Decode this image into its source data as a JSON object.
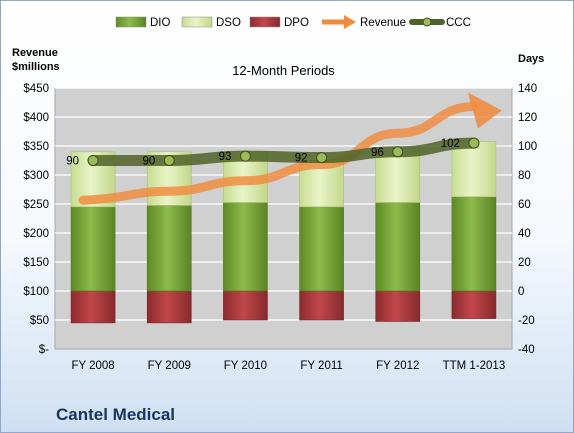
{
  "chart_data": {
    "type": "bar",
    "title": "12-Month Periods",
    "company": "Cantel Medical",
    "y_left_label_line1": "Revenue",
    "y_left_label_line2": "$millions",
    "y_right_label": "Days",
    "categories": [
      "FY 2008",
      "FY 2009",
      "FY 2010",
      "FY 2011",
      "FY 2012",
      "TTM 1-2013"
    ],
    "left_axis": {
      "ylim": [
        0,
        450
      ],
      "ticks": [
        0,
        50,
        100,
        150,
        200,
        250,
        300,
        350,
        400,
        450
      ],
      "tick_labels": [
        "$-",
        "$50",
        "$100",
        "$150",
        "$200",
        "$250",
        "$300",
        "$350",
        "$400",
        "$450"
      ]
    },
    "right_axis": {
      "ylim": [
        -40,
        140
      ],
      "ticks": [
        -40,
        -20,
        0,
        20,
        40,
        60,
        80,
        100,
        120,
        140
      ],
      "tick_labels": [
        "-40",
        "-20",
        "0",
        "20",
        "40",
        "60",
        "80",
        "100",
        "120",
        "140"
      ]
    },
    "legend_position": "top",
    "series": [
      {
        "name": "DIO",
        "axis": "right",
        "kind": "stacked-bar",
        "values": [
          58,
          59,
          61,
          58,
          61,
          65
        ],
        "color": "#7aa33b"
      },
      {
        "name": "DSO",
        "axis": "right",
        "kind": "stacked-bar",
        "values": [
          38,
          37,
          35,
          37,
          38,
          38
        ],
        "color": "#d7e8a8"
      },
      {
        "name": "DPO",
        "axis": "right",
        "kind": "negative-bar",
        "values": [
          -22,
          -22,
          -20,
          -20,
          -21,
          -19
        ],
        "color": "#a8383c"
      },
      {
        "name": "Revenue",
        "axis": "left",
        "kind": "arrow-line",
        "values": [
          260,
          272,
          290,
          318,
          372,
          418
        ],
        "color": "#f08a3c"
      },
      {
        "name": "CCC",
        "axis": "right",
        "kind": "line",
        "values": [
          90,
          90,
          93,
          92,
          96,
          102
        ],
        "color": "#4f6228"
      }
    ],
    "data_labels": [
      "90",
      "90",
      "93",
      "92",
      "96",
      "102"
    ],
    "grid": true
  }
}
